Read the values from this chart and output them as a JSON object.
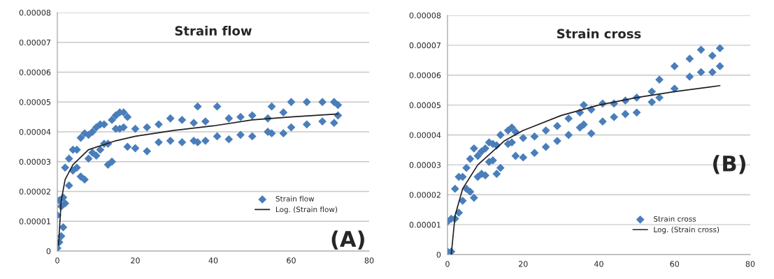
{
  "chart_data": [
    {
      "type": "scatter",
      "title": "Strain flow",
      "xlim": [
        0,
        80
      ],
      "xticks": [
        0,
        20,
        40,
        60,
        80
      ],
      "ylim": [
        0,
        8e-05
      ],
      "yticks": [
        0,
        {
          "value": 1e-05,
          "label": "0.00001"
        },
        {
          "value": 2e-05,
          "label": "0.00002"
        },
        {
          "value": 3e-05,
          "label": "0.00003"
        },
        {
          "value": 4e-05,
          "label": "0.00004"
        },
        {
          "value": 5e-05,
          "label": "0.00005"
        },
        {
          "value": 6e-05,
          "label": "0.00006"
        },
        {
          "value": 7e-05,
          "label": "0.00007"
        },
        {
          "value": 8e-05,
          "label": "0.00008"
        }
      ],
      "grid": "y",
      "legend": "bottom right",
      "annotations": [
        "(A)"
      ],
      "series": [
        {
          "name": "Strain flow",
          "marker": "diamond",
          "color": "#4a7ebb",
          "x": [
            0,
            0,
            0.5,
            0.5,
            1,
            1,
            1.5,
            1.5,
            2,
            2,
            3,
            3,
            4,
            4,
            5,
            5,
            6,
            6,
            7,
            7,
            8,
            8,
            9,
            9,
            10,
            10,
            11,
            11,
            12,
            12,
            13,
            13,
            14,
            14,
            15,
            15,
            16,
            16,
            17,
            17,
            18,
            18,
            20,
            20,
            23,
            23,
            26,
            26,
            29,
            29,
            32,
            32,
            35,
            35,
            36,
            36,
            38,
            38,
            41,
            41,
            44,
            44,
            47,
            47,
            50,
            50,
            54,
            54,
            55,
            55,
            58,
            58,
            60,
            60,
            64,
            64,
            68,
            68,
            71,
            71,
            72,
            72
          ],
          "values": [
            1e-06,
            1.2e-05,
            1.7e-05,
            3e-06,
            5e-06,
            1.5e-05,
            1.8e-05,
            8e-06,
            1.6e-05,
            2.8e-05,
            2.2e-05,
            3.1e-05,
            2.7e-05,
            3.4e-05,
            3.4e-05,
            2.8e-05,
            2.5e-05,
            3.8e-05,
            2.4e-05,
            3.95e-05,
            3.1e-05,
            3.9e-05,
            3.3e-05,
            4e-05,
            3.2e-05,
            4.15e-05,
            3.4e-05,
            4.25e-05,
            3.6e-05,
            4.25e-05,
            2.9e-05,
            3.6e-05,
            3e-05,
            4.4e-05,
            4.1e-05,
            4.55e-05,
            4.1e-05,
            4.65e-05,
            4.15e-05,
            4.65e-05,
            3.5e-05,
            4.5e-05,
            3.45e-05,
            4.1e-05,
            3.35e-05,
            4.15e-05,
            3.65e-05,
            4.25e-05,
            3.7e-05,
            4.45e-05,
            3.65e-05,
            4.4e-05,
            3.7e-05,
            4.3e-05,
            3.65e-05,
            4.85e-05,
            3.7e-05,
            4.35e-05,
            3.85e-05,
            4.85e-05,
            3.75e-05,
            4.45e-05,
            3.9e-05,
            4.5e-05,
            3.85e-05,
            4.55e-05,
            4e-05,
            4.45e-05,
            3.95e-05,
            4.85e-05,
            3.95e-05,
            4.65e-05,
            4.15e-05,
            5e-05,
            4.25e-05,
            5e-05,
            4.35e-05,
            5e-05,
            4.3e-05,
            5e-05,
            4.55e-05,
            4.9e-05
          ]
        },
        {
          "name": "Log. (Strain flow)",
          "type": "line",
          "marker": "none",
          "color": "#1f1f1f",
          "x": [
            0.3,
            1,
            2,
            4,
            8,
            15,
            20,
            30,
            40,
            50,
            60,
            72
          ],
          "values": [
            2e-06,
            1.7e-05,
            2.4e-05,
            2.9e-05,
            3.4e-05,
            3.7e-05,
            3.85e-05,
            4.05e-05,
            4.2e-05,
            4.4e-05,
            4.5e-05,
            4.6e-05
          ]
        }
      ]
    },
    {
      "type": "scatter",
      "title": "Strain cross",
      "xlim": [
        0,
        80
      ],
      "xticks": [
        0,
        20,
        40,
        60,
        80
      ],
      "ylim": [
        0,
        8e-05
      ],
      "yticks": [
        0,
        {
          "value": 1e-05,
          "label": "0.00001"
        },
        {
          "value": 2e-05,
          "label": "0.00002"
        },
        {
          "value": 3e-05,
          "label": "0.00003"
        },
        {
          "value": 4e-05,
          "label": "0.00004"
        },
        {
          "value": 5e-05,
          "label": "0.00005"
        },
        {
          "value": 6e-05,
          "label": "0.00006"
        },
        {
          "value": 7e-05,
          "label": "0.00007"
        },
        {
          "value": 8e-05,
          "label": "0.00008"
        }
      ],
      "grid": "y",
      "legend": "bottom right",
      "annotations": [
        "(B)"
      ],
      "series": [
        {
          "name": "Strain cross",
          "marker": "diamond",
          "color": "#4a7ebb",
          "x": [
            0,
            0,
            1,
            1,
            2,
            2,
            3,
            3,
            4,
            4,
            5,
            5,
            6,
            6,
            7,
            7,
            8,
            8,
            9,
            9,
            10,
            10,
            11,
            11,
            12,
            12,
            13,
            13,
            14,
            14,
            16,
            16,
            17,
            17,
            18,
            18,
            20,
            20,
            23,
            23,
            26,
            26,
            29,
            29,
            32,
            32,
            35,
            35,
            36,
            36,
            38,
            38,
            41,
            41,
            44,
            44,
            47,
            47,
            50,
            50,
            54,
            54,
            56,
            56,
            60,
            60,
            64,
            64,
            67,
            67,
            70,
            70,
            72,
            72
          ],
          "values": [
            1e-06,
            1.1e-05,
            1e-06,
            1.2e-05,
            1.2e-05,
            2.2e-05,
            1.4e-05,
            2.6e-05,
            1.8e-05,
            2.6e-05,
            2.2e-05,
            2.9e-05,
            2.1e-05,
            3.2e-05,
            1.9e-05,
            3.55e-05,
            2.6e-05,
            3.3e-05,
            2.7e-05,
            3.45e-05,
            2.65e-05,
            3.55e-05,
            3.1e-05,
            3.75e-05,
            3.15e-05,
            3.7e-05,
            2.7e-05,
            3.65e-05,
            2.9e-05,
            4e-05,
            3.7e-05,
            4.15e-05,
            3.75e-05,
            4.25e-05,
            3.3e-05,
            4.1e-05,
            3.25e-05,
            3.9e-05,
            3.4e-05,
            3.95e-05,
            3.6e-05,
            4.15e-05,
            3.8e-05,
            4.3e-05,
            4e-05,
            4.55e-05,
            4.25e-05,
            4.75e-05,
            4.35e-05,
            5e-05,
            4.05e-05,
            4.85e-05,
            4.45e-05,
            5.05e-05,
            4.6e-05,
            5.05e-05,
            4.7e-05,
            5.15e-05,
            4.75e-05,
            5.25e-05,
            5.1e-05,
            5.45e-05,
            5.25e-05,
            5.85e-05,
            5.55e-05,
            6.3e-05,
            5.95e-05,
            6.55e-05,
            6.1e-05,
            6.85e-05,
            6.1e-05,
            6.65e-05,
            6.3e-05,
            6.9e-05
          ]
        },
        {
          "name": "Log. (Strain cross)",
          "type": "line",
          "marker": "none",
          "color": "#1f1f1f",
          "x": [
            1,
            2,
            4,
            8,
            15,
            20,
            30,
            40,
            50,
            60,
            72
          ],
          "values": [
            0,
            1.3e-05,
            2.2e-05,
            3e-05,
            3.8e-05,
            4.15e-05,
            4.65e-05,
            5e-05,
            5.25e-05,
            5.45e-05,
            5.65e-05
          ]
        }
      ]
    }
  ]
}
